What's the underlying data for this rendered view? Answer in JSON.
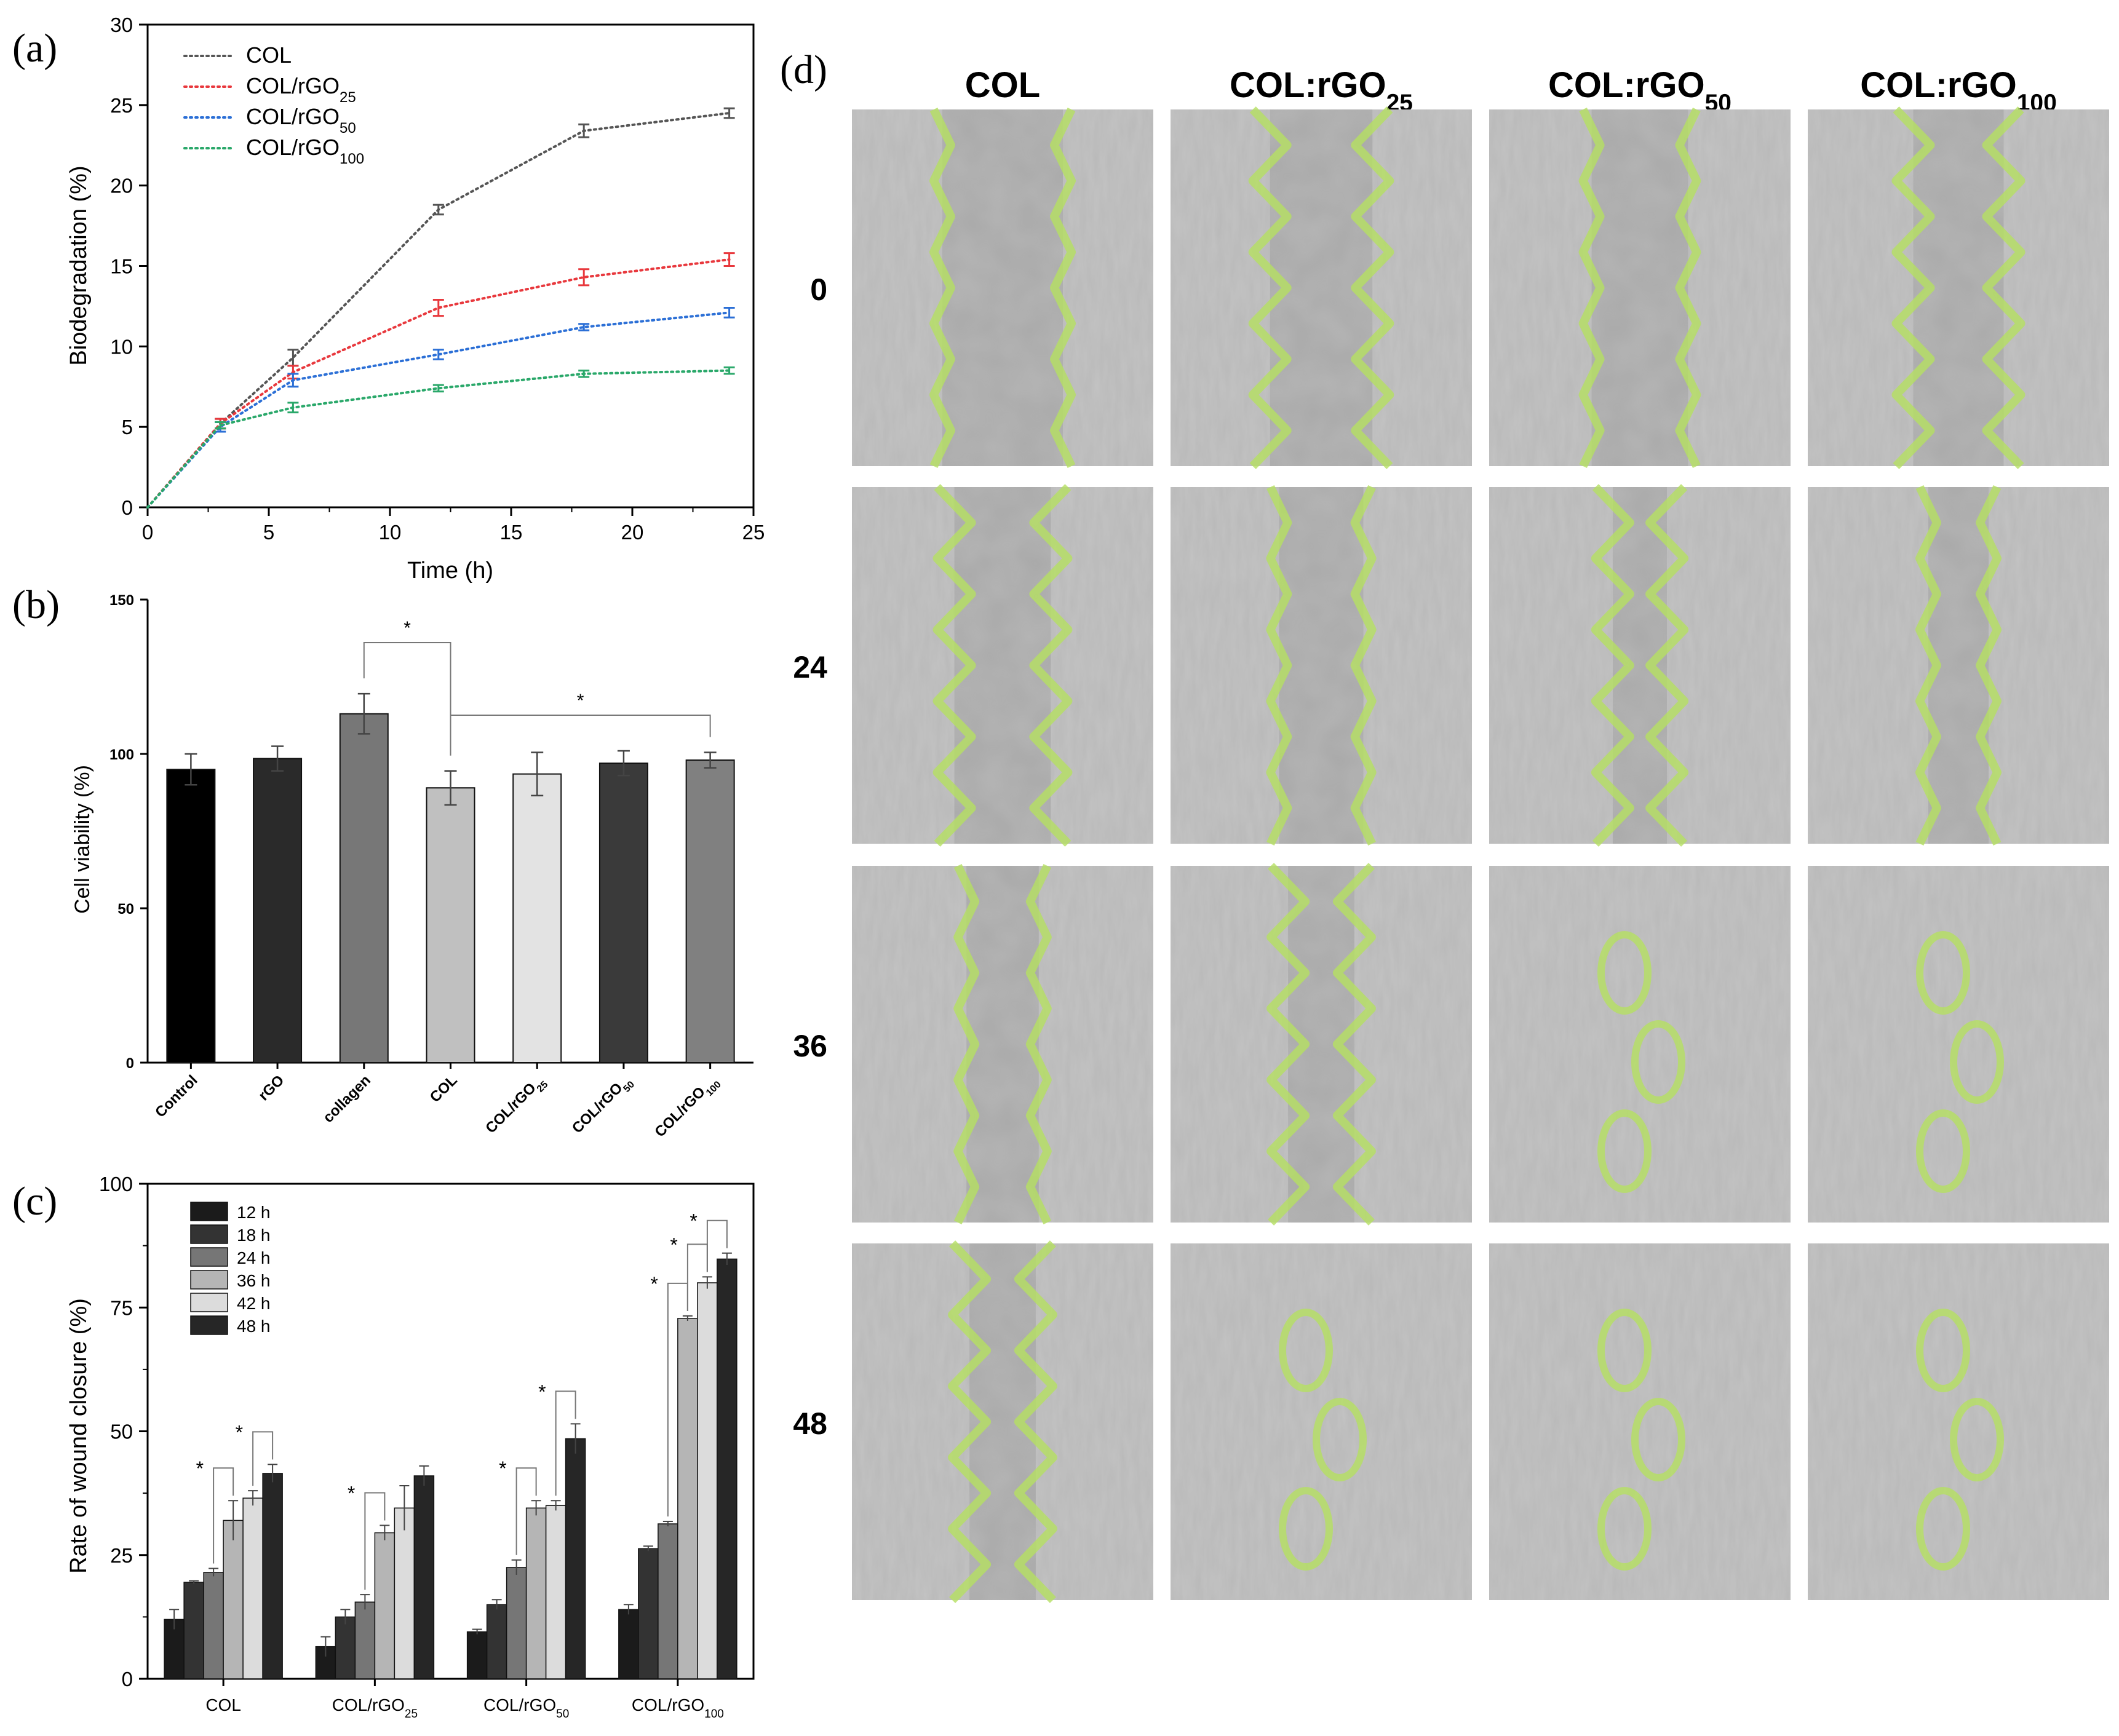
{
  "figure": {
    "panel_labels": [
      "(a)",
      "(b)",
      "(c)",
      "(d)"
    ]
  },
  "colors": {
    "COL": "#555555",
    "COL/rGO25": "#e8383d",
    "COL/rGO50": "#2b6fd6",
    "COL/rGO100": "#2aa86a",
    "wound_outline": "#b5e061",
    "micro_bg": "#b9b9b9"
  },
  "chart_data": [
    {
      "id": "a",
      "type": "line",
      "xlabel": "Time (h)",
      "ylabel": "Biodegradation (%)",
      "xlim": [
        0,
        25
      ],
      "ylim": [
        0,
        30
      ],
      "xticks": [
        0,
        5,
        10,
        15,
        20,
        25
      ],
      "yticks": [
        0,
        5,
        10,
        15,
        20,
        25,
        30
      ],
      "x": [
        0,
        3,
        6,
        12,
        18,
        24
      ],
      "series": [
        {
          "name": "COL",
          "sub": "",
          "values": [
            0,
            5.2,
            9.3,
            18.5,
            23.4,
            24.5
          ],
          "err": [
            0,
            0.3,
            0.5,
            0.3,
            0.4,
            0.3
          ],
          "color": "#555555"
        },
        {
          "name": "COL/rGO",
          "sub": "25",
          "values": [
            0,
            5.2,
            8.4,
            12.4,
            14.3,
            15.4
          ],
          "err": [
            0,
            0.3,
            0.4,
            0.5,
            0.5,
            0.4
          ],
          "color": "#e8383d"
        },
        {
          "name": "COL/rGO",
          "sub": "50",
          "values": [
            0,
            5.0,
            7.9,
            9.5,
            11.2,
            12.1
          ],
          "err": [
            0,
            0.3,
            0.4,
            0.3,
            0.2,
            0.3
          ],
          "color": "#2b6fd6"
        },
        {
          "name": "COL/rGO",
          "sub": "100",
          "values": [
            0,
            5.1,
            6.2,
            7.4,
            8.3,
            8.5
          ],
          "err": [
            0,
            0.2,
            0.3,
            0.2,
            0.2,
            0.2
          ],
          "color": "#2aa86a"
        }
      ],
      "legend": "top-left"
    },
    {
      "id": "b",
      "type": "bar",
      "ylabel": "Cell viability (%)",
      "ylim": [
        0,
        150
      ],
      "yticks": [
        0,
        50,
        100,
        150
      ],
      "categories": [
        {
          "name": "Control",
          "sub": ""
        },
        {
          "name": "rGO",
          "sub": ""
        },
        {
          "name": "collagen",
          "sub": ""
        },
        {
          "name": "COL",
          "sub": ""
        },
        {
          "name": "COL/rGO",
          "sub": "25"
        },
        {
          "name": "COL/rGO",
          "sub": "50"
        },
        {
          "name": "COL/rGO",
          "sub": "100"
        }
      ],
      "values": [
        95,
        98.5,
        113,
        89,
        93.5,
        97,
        98
      ],
      "err": [
        5,
        4,
        6.5,
        5.5,
        7,
        4,
        2.5
      ],
      "bar_colors": [
        "#000000",
        "#2a2a2a",
        "#777777",
        "#c0c0c0",
        "#e3e3e3",
        "#3a3a3a",
        "#808080"
      ],
      "significance": [
        {
          "from": 2,
          "to": 3,
          "label": "*"
        },
        {
          "from": 3,
          "to": 6,
          "label": "*"
        }
      ]
    },
    {
      "id": "c",
      "type": "bar",
      "ylabel": "Rate of wound closure (%)",
      "ylim": [
        0,
        100
      ],
      "yticks": [
        0,
        25,
        50,
        75,
        100
      ],
      "categories": [
        {
          "name": "COL",
          "sub": ""
        },
        {
          "name": "COL/rGO",
          "sub": "25"
        },
        {
          "name": "COL/rGO",
          "sub": "50"
        },
        {
          "name": "COL/rGO",
          "sub": "100"
        }
      ],
      "series": [
        {
          "name": "12 h",
          "values": [
            12,
            6.5,
            9.5,
            14
          ],
          "err": [
            2,
            2,
            0.5,
            1
          ],
          "color": "#1b1b1b"
        },
        {
          "name": "18 h",
          "values": [
            19.5,
            12.5,
            15,
            26.3
          ],
          "err": [
            0.3,
            1.5,
            1,
            0.5
          ],
          "color": "#333333"
        },
        {
          "name": "24 h",
          "values": [
            21.5,
            15.5,
            22.5,
            31.3
          ],
          "err": [
            0.8,
            1.5,
            1.5,
            0.5
          ],
          "color": "#767676"
        },
        {
          "name": "36 h",
          "values": [
            32,
            29.5,
            34.5,
            72.8
          ],
          "err": [
            4,
            1.5,
            1.5,
            0.5
          ],
          "color": "#b5b5b5"
        },
        {
          "name": "42 h",
          "values": [
            36.5,
            34.5,
            35,
            80
          ],
          "err": [
            1.5,
            4.5,
            1,
            1.2
          ],
          "color": "#dcdcdc"
        },
        {
          "name": "48 h",
          "values": [
            41.5,
            41,
            48.5,
            84.8
          ],
          "err": [
            1.8,
            2,
            3,
            1.2
          ],
          "color": "#262626"
        }
      ],
      "significance": [
        {
          "group": 0,
          "from": 2,
          "to": 3,
          "label": "*"
        },
        {
          "group": 0,
          "from": 4,
          "to": 5,
          "label": "*"
        },
        {
          "group": 1,
          "from": 2,
          "to": 3,
          "label": "*"
        },
        {
          "group": 2,
          "from": 2,
          "to": 3,
          "label": "*"
        },
        {
          "group": 2,
          "from": 4,
          "to": 5,
          "label": "*"
        },
        {
          "group": 3,
          "from": 2,
          "to": 3,
          "label": "*"
        },
        {
          "group": 3,
          "from": 3,
          "to": 4,
          "label": "*"
        },
        {
          "group": 3,
          "from": 4,
          "to": 5,
          "label": "*"
        }
      ],
      "legend": "top-left"
    }
  ],
  "micrographs": {
    "columns": [
      {
        "name": "COL",
        "sub": ""
      },
      {
        "name": "COL:rGO",
        "sub": "25"
      },
      {
        "name": "COL:rGO",
        "sub": "50"
      },
      {
        "name": "COL:rGO",
        "sub": "100"
      }
    ],
    "rows": [
      "0",
      "24",
      "36",
      "48"
    ]
  }
}
